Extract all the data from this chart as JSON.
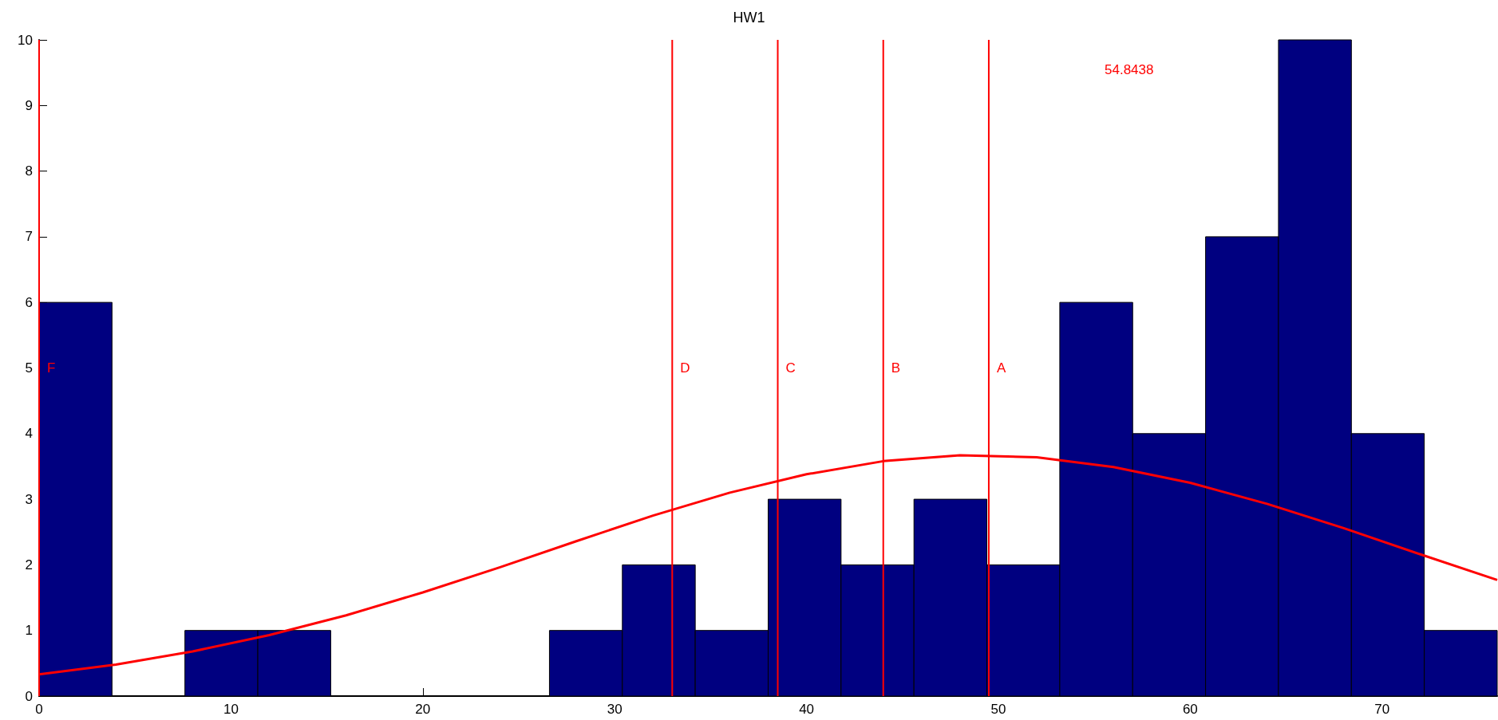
{
  "chart_data": {
    "type": "histogram",
    "title": "HW1",
    "series": [
      {
        "color": "#000080",
        "bins": [
          0,
          3.8,
          7.6,
          11.4,
          15.2,
          19,
          22.8,
          26.6,
          30.4,
          34.2,
          38,
          41.8,
          45.6,
          49.4,
          53.2,
          57,
          60.8,
          64.6,
          68.4,
          72.2,
          76
        ],
        "values": [
          6,
          0,
          1,
          1,
          0,
          0,
          0,
          1,
          2,
          1,
          3,
          2,
          3,
          2,
          6,
          4,
          7,
          10,
          4,
          1
        ]
      },
      {
        "type": "line",
        "color": "#ff0000",
        "x": [
          0,
          4,
          8,
          12,
          16,
          20,
          24,
          28,
          32,
          36,
          40,
          44,
          48,
          52,
          56,
          60,
          64,
          68,
          72,
          76
        ],
        "values": [
          0.33,
          0.48,
          0.68,
          0.93,
          1.23,
          1.58,
          1.96,
          2.36,
          2.75,
          3.1,
          3.38,
          3.58,
          3.67,
          3.64,
          3.49,
          3.25,
          2.93,
          2.56,
          2.16,
          1.77
        ]
      }
    ],
    "ref_lines": [
      {
        "axis": "x",
        "value": 0,
        "label": "F",
        "color": "#ff0000"
      },
      {
        "axis": "x",
        "value": 33,
        "label": "D",
        "color": "#ff0000"
      },
      {
        "axis": "x",
        "value": 38.5,
        "label": "C",
        "color": "#ff0000"
      },
      {
        "axis": "x",
        "value": 44,
        "label": "B",
        "color": "#ff0000"
      },
      {
        "axis": "x",
        "value": 49.5,
        "label": "A",
        "color": "#ff0000"
      }
    ],
    "annotations": [
      "54.8438"
    ],
    "xlim": [
      0,
      76
    ],
    "xticks": [
      0,
      10,
      20,
      30,
      40,
      50,
      60,
      70
    ],
    "ylim": [
      0,
      10
    ],
    "yticks": [
      0,
      1,
      2,
      3,
      4,
      5,
      6,
      7,
      8,
      9,
      10
    ],
    "grid": false,
    "marker": "none",
    "line_style": "solid"
  }
}
